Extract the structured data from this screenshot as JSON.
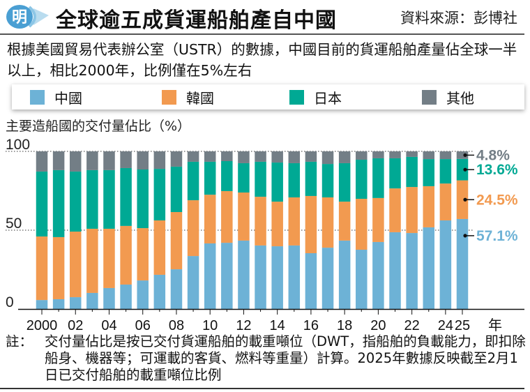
{
  "header": {
    "logo_char": "明",
    "title": "全球逾五成貨運船舶產自中國",
    "source": "資料來源：彭博社"
  },
  "lead": "根據美國貿易代表辦公室（USTR）的數據，中國目前的貨運船舶產量佔全球一半以上，相比2000年，比例僅在5%左右",
  "legend": [
    {
      "label": "中國",
      "color": "#6db2d6"
    },
    {
      "label": "韓國",
      "color": "#f29a50"
    },
    {
      "label": "日本",
      "color": "#00a994"
    },
    {
      "label": "其他",
      "color": "#737e86"
    }
  ],
  "notes": {
    "label": "註：",
    "text": "交付量佔比是按已交付貨運船舶的載重噸位（DWT，指船舶的負載能力，即扣除船身、機器等；可運載的客貨、燃料等重量）計算。2025年數據反映截至2月1日已交付船舶的載重噸位比例"
  },
  "chart_data": {
    "type": "bar",
    "stacked": true,
    "title": "全球逾五成貨運船舶產自中國",
    "ylabel": "主要造船國的交付量佔比（%）",
    "xlabel": "年",
    "ylim": [
      0,
      100
    ],
    "yticks": [
      0,
      50,
      100
    ],
    "grid": "dotted at 50 and 100",
    "legend_position": "top",
    "categories": [
      "2000",
      "2001",
      "2002",
      "2003",
      "2004",
      "2005",
      "2006",
      "2007",
      "2008",
      "2009",
      "2010",
      "2011",
      "2012",
      "2013",
      "2014",
      "2015",
      "2016",
      "2017",
      "2018",
      "2019",
      "2020",
      "2021",
      "2022",
      "2023",
      "2024",
      "2025"
    ],
    "xtick_labels": [
      "2000",
      "02",
      "04",
      "06",
      "08",
      "10",
      "12",
      "14",
      "16",
      "18",
      "20",
      "22",
      "24",
      "25"
    ],
    "xtick_label_categories": [
      "2000",
      "2002",
      "2004",
      "2006",
      "2008",
      "2010",
      "2012",
      "2014",
      "2016",
      "2018",
      "2020",
      "2022",
      "2024",
      "2025"
    ],
    "series": [
      {
        "name": "中國",
        "color": "#6db2d6",
        "values": [
          5.7,
          6.2,
          7.5,
          10.2,
          13.3,
          15.5,
          18.1,
          21.7,
          25.2,
          33.6,
          41.6,
          42.0,
          43.4,
          40.3,
          39.8,
          40.3,
          35.4,
          38.9,
          43.4,
          37.6,
          42.5,
          48.7,
          48.2,
          51.8,
          56.2,
          57.1
        ]
      },
      {
        "name": "韓國",
        "color": "#f29a50",
        "values": [
          40.3,
          39.4,
          41.6,
          40.7,
          37.6,
          37.2,
          33.2,
          34.5,
          36.3,
          35.4,
          30.9,
          32.8,
          30.5,
          30.9,
          28.3,
          30.5,
          36.3,
          31.9,
          24.7,
          32.3,
          27.9,
          27.8,
          29.2,
          26.1,
          23.4,
          24.5
        ]
      },
      {
        "name": "日本",
        "color": "#00a994",
        "values": [
          41.2,
          42.5,
          38.1,
          37.2,
          37.2,
          36.7,
          37.2,
          32.7,
          28.8,
          24.4,
          20.9,
          19.0,
          18.6,
          22.2,
          24.8,
          21.7,
          21.7,
          21.2,
          24.4,
          24.8,
          25.2,
          19.1,
          19.1,
          17.2,
          15.5,
          13.6
        ]
      },
      {
        "name": "其他",
        "color": "#737e86",
        "values": [
          12.8,
          11.9,
          12.8,
          11.9,
          11.9,
          10.6,
          11.5,
          11.1,
          9.7,
          6.6,
          6.6,
          6.2,
          7.5,
          6.6,
          7.1,
          7.5,
          6.6,
          8.0,
          7.5,
          5.3,
          4.4,
          4.4,
          3.5,
          4.9,
          4.9,
          4.8
        ]
      }
    ],
    "annotations": [
      {
        "series": "其他",
        "category": "2025",
        "text": "4.8%",
        "color": "#737e86"
      },
      {
        "series": "日本",
        "category": "2025",
        "text": "13.6%",
        "color": "#00a994"
      },
      {
        "series": "韓國",
        "category": "2025",
        "text": "24.5%",
        "color": "#f29a50"
      },
      {
        "series": "中國",
        "category": "2025",
        "text": "57.1%",
        "color": "#6db2d6"
      }
    ]
  }
}
